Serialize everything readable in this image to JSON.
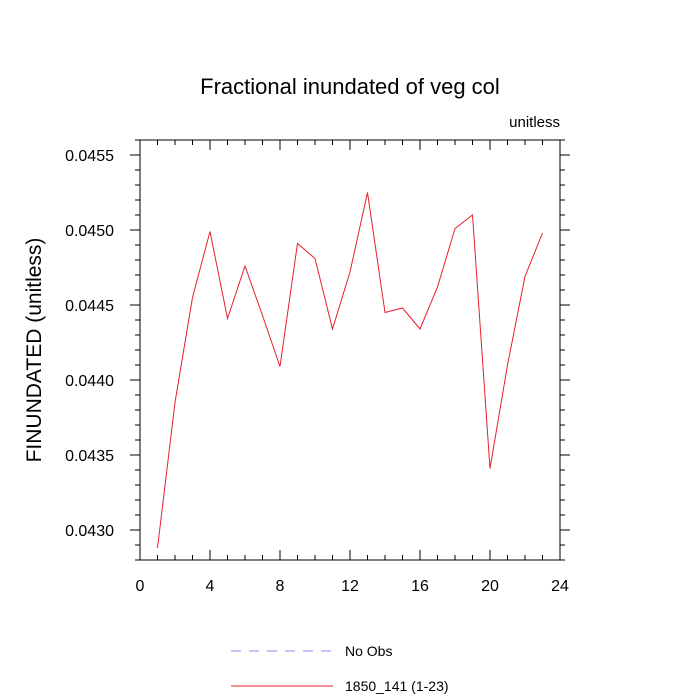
{
  "chart_data": {
    "type": "line",
    "title": "Fractional inundated of veg col",
    "units_label": "unitless",
    "ylabel": "FINUNDATED  (unitless)",
    "xlabel": "",
    "xlim": [
      0,
      24
    ],
    "ylim": [
      0.0428,
      0.0456
    ],
    "x_ticks": [
      0,
      4,
      8,
      12,
      16,
      20,
      24
    ],
    "x_tick_labels": [
      "0",
      "4",
      "8",
      "12",
      "16",
      "20",
      "24"
    ],
    "y_ticks": [
      0.043,
      0.0435,
      0.044,
      0.0445,
      0.045,
      0.0455
    ],
    "y_tick_labels": [
      "0.0430",
      "0.0435",
      "0.0440",
      "0.0445",
      "0.0450",
      "0.0455"
    ],
    "grid": false,
    "legend_placement": "bottom",
    "series": [
      {
        "name": "1850_141 (1-23)",
        "color": "#e8202a",
        "x": [
          1,
          2,
          3,
          4,
          5,
          6,
          7,
          8,
          9,
          10,
          11,
          12,
          13,
          14,
          15,
          16,
          17,
          18,
          19,
          20,
          21,
          22,
          23
        ],
        "values": [
          0.04288,
          0.04385,
          0.04455,
          0.04499,
          0.04441,
          0.04476,
          0.04443,
          0.04409,
          0.04491,
          0.04481,
          0.04434,
          0.04472,
          0.04525,
          0.04445,
          0.04448,
          0.04434,
          0.04462,
          0.04501,
          0.0451,
          0.04341,
          0.0441,
          0.04469,
          0.04498
        ]
      }
    ],
    "legend": [
      {
        "label": "No Obs",
        "color": "#8888ee",
        "style": "dashed"
      },
      {
        "label": "1850_141 (1-23)",
        "color": "#e8202a",
        "style": "solid"
      }
    ]
  }
}
